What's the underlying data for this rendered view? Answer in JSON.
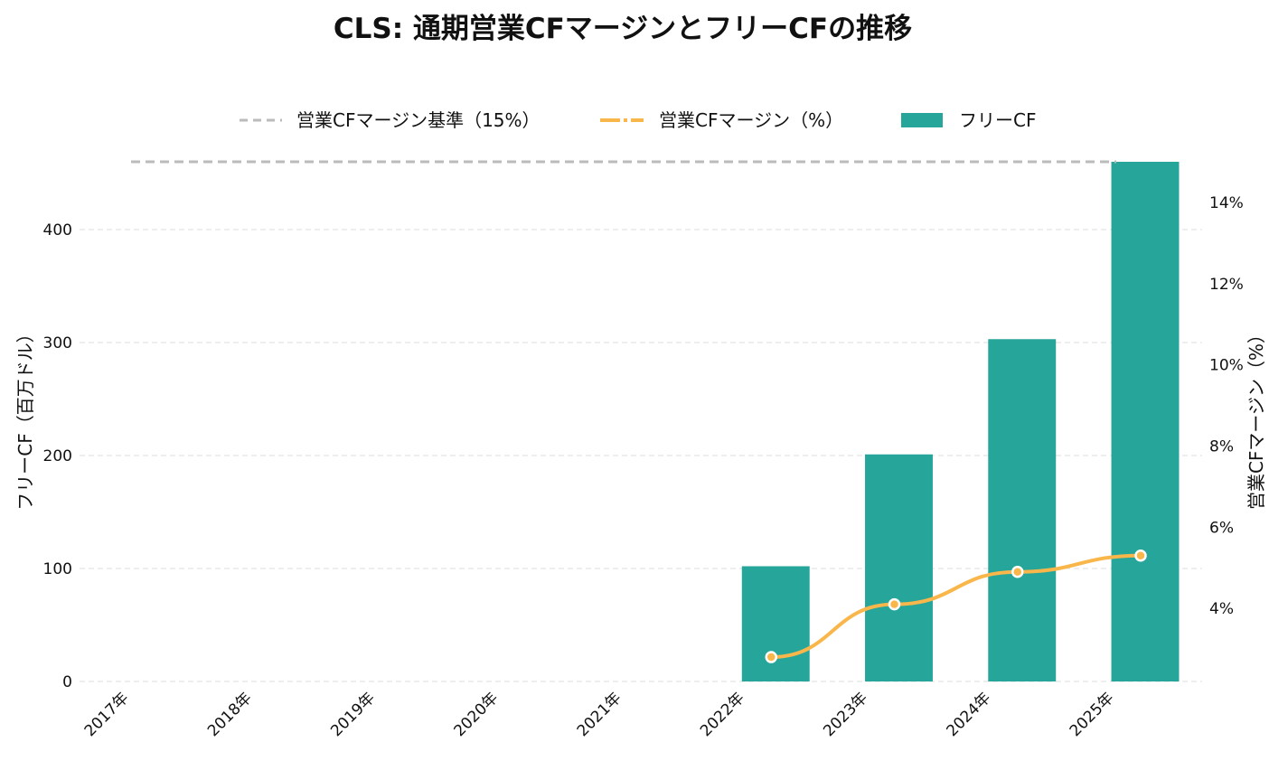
{
  "chart_data": {
    "type": "bar",
    "title": "CLS: 通期営業CFマージンとフリーCFの推移",
    "categories": [
      "2017年",
      "2018年",
      "2019年",
      "2020年",
      "2021年",
      "2022年",
      "2023年",
      "2024年",
      "2025年"
    ],
    "series": [
      {
        "name": "フリーCF",
        "type": "bar",
        "axis": "left",
        "color": "#26a69a",
        "values": [
          null,
          null,
          null,
          null,
          null,
          102,
          201,
          303,
          460
        ]
      },
      {
        "name": "営業CFマージン（%）",
        "type": "line",
        "axis": "right",
        "color": "#f9b64a",
        "values": [
          null,
          null,
          null,
          null,
          null,
          2.8,
          4.1,
          4.9,
          5.3
        ]
      },
      {
        "name": "営業CFマージン基準（15%）",
        "type": "reference-line",
        "axis": "right",
        "color": "#bbbbbb",
        "value": 15
      }
    ],
    "y_left": {
      "label": "フリーCF（百万ドル）",
      "ticks": [
        0,
        100,
        200,
        300,
        400
      ],
      "ylim": [
        0,
        460
      ]
    },
    "y_right": {
      "label": "営業CFマージン（%）",
      "ticks": [
        4,
        6,
        8,
        10,
        12,
        14
      ],
      "tick_labels": [
        "4%",
        "6%",
        "8%",
        "10%",
        "12%",
        "14%"
      ],
      "ylim": [
        2.2,
        15
      ]
    },
    "grid": "horizontal dashed",
    "legend_position": "top-center",
    "legend": [
      "営業CFマージン基準（15%）",
      "営業CFマージン（%）",
      "フリーCF"
    ]
  }
}
